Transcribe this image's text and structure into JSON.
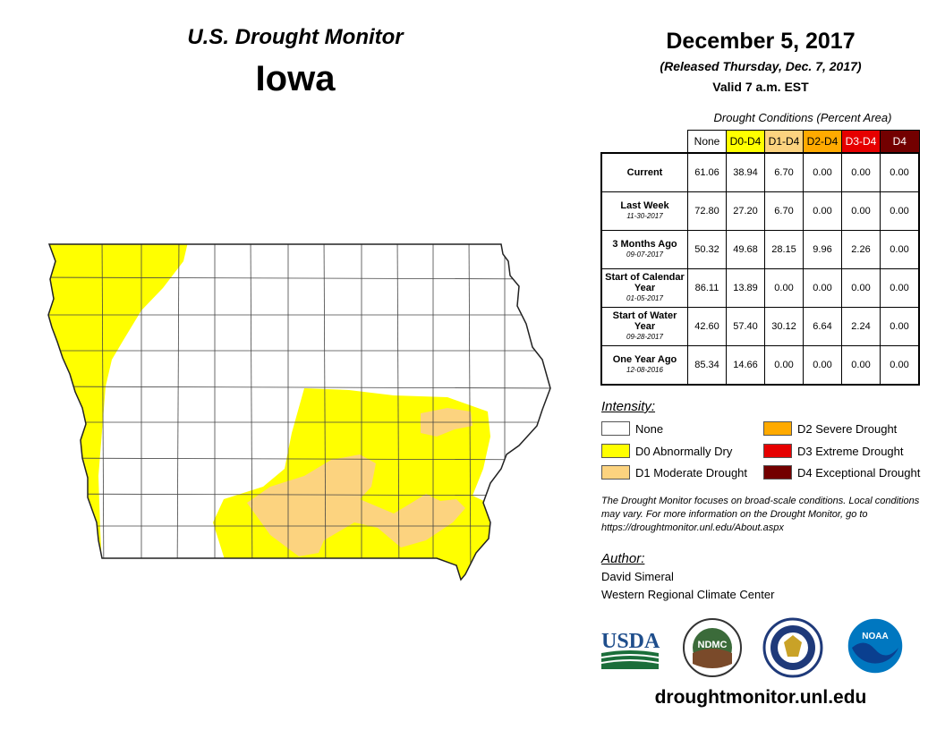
{
  "header": {
    "title": "U.S. Drought Monitor",
    "state": "Iowa",
    "date": "December 5, 2017",
    "released": "(Released Thursday, Dec. 7, 2017)",
    "valid": "Valid 7 a.m. EST"
  },
  "stats": {
    "caption": "Drought Conditions (Percent Area)",
    "columns": [
      {
        "label": "None",
        "color": "#ffffff",
        "text_color": "#000000"
      },
      {
        "label": "D0-D4",
        "color": "#ffff00",
        "text_color": "#000000"
      },
      {
        "label": "D1-D4",
        "color": "#fcd37f",
        "text_color": "#000000"
      },
      {
        "label": "D2-D4",
        "color": "#ffaa00",
        "text_color": "#000000"
      },
      {
        "label": "D3-D4",
        "color": "#e60000",
        "text_color": "#ffffff"
      },
      {
        "label": "D4",
        "color": "#730000",
        "text_color": "#ffffff"
      }
    ],
    "rows": [
      {
        "label": "Current",
        "sub": "",
        "values": [
          "61.06",
          "38.94",
          "6.70",
          "0.00",
          "0.00",
          "0.00"
        ]
      },
      {
        "label": "Last Week",
        "sub": "11-30-2017",
        "values": [
          "72.80",
          "27.20",
          "6.70",
          "0.00",
          "0.00",
          "0.00"
        ]
      },
      {
        "label": "3 Months Ago",
        "sub": "09-07-2017",
        "values": [
          "50.32",
          "49.68",
          "28.15",
          "9.96",
          "2.26",
          "0.00"
        ]
      },
      {
        "label": "Start of Calendar Year",
        "sub": "01-05-2017",
        "values": [
          "86.11",
          "13.89",
          "0.00",
          "0.00",
          "0.00",
          "0.00"
        ]
      },
      {
        "label": "Start of Water Year",
        "sub": "09-28-2017",
        "values": [
          "42.60",
          "57.40",
          "30.12",
          "6.64",
          "2.24",
          "0.00"
        ]
      },
      {
        "label": "One Year Ago",
        "sub": "12-08-2016",
        "values": [
          "85.34",
          "14.66",
          "0.00",
          "0.00",
          "0.00",
          "0.00"
        ]
      }
    ]
  },
  "legend": {
    "title": "Intensity:",
    "items": [
      {
        "label": "None",
        "color": "#ffffff"
      },
      {
        "label": "D0 Abnormally Dry",
        "color": "#ffff00"
      },
      {
        "label": "D1 Moderate Drought",
        "color": "#fcd37f"
      },
      {
        "label": "D2 Severe Drought",
        "color": "#ffaa00"
      },
      {
        "label": "D3 Extreme Drought",
        "color": "#e60000"
      },
      {
        "label": "D4 Exceptional Drought",
        "color": "#730000"
      }
    ]
  },
  "note": "The Drought Monitor focuses on broad-scale conditions. Local conditions may vary. For more information on the Drought Monitor, go to https://droughtmonitor.unl.edu/About.aspx",
  "author": {
    "title": "Author:",
    "name": "David Simeral",
    "org": "Western Regional Climate Center"
  },
  "logos": {
    "usda": "USDA",
    "ndmc": "NDMC",
    "noaa": "NOAA"
  },
  "url": "droughtmonitor.unl.edu",
  "map_colors": {
    "d0": "#ffff00",
    "d1": "#fcd37f",
    "outline": "#222222",
    "county_line": "#444444"
  }
}
